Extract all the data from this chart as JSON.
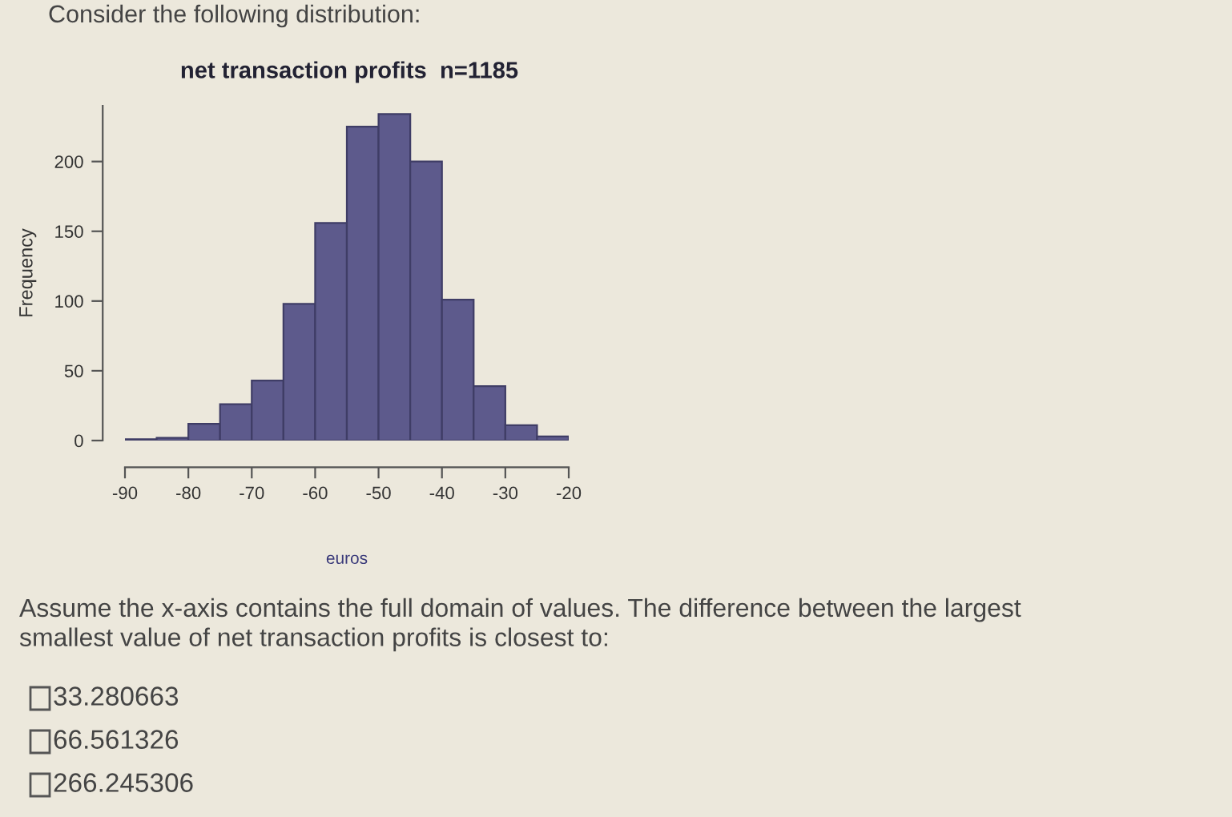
{
  "chart_data": {
    "type": "histogram",
    "title": "net transaction profits  n=1185",
    "xlabel": "euros",
    "ylabel": "Frequency",
    "bins": [
      -90,
      -85,
      -80,
      -75,
      -70,
      -65,
      -60,
      -55,
      -50,
      -45,
      -40,
      -35,
      -30,
      -25,
      -20
    ],
    "values": [
      1,
      2,
      12,
      26,
      43,
      98,
      156,
      225,
      234,
      200,
      101,
      39,
      11,
      3
    ],
    "color": "#5d5a8c",
    "xlim": [
      -90,
      -20
    ],
    "ylim": [
      0,
      240
    ],
    "xticks": [
      -90,
      -80,
      -70,
      -60,
      -50,
      -40,
      -30,
      -20
    ],
    "yticks": [
      0,
      50,
      100,
      150,
      200
    ],
    "grid": false,
    "legend": false,
    "annotations": [
      "Consider the following distribution:",
      "Assume the x-axis contains the full domain of values. The difference between the largest\nsmallest value of net transaction profits is closest to:",
      "33.280663",
      "66.561326",
      "266.245306"
    ]
  }
}
